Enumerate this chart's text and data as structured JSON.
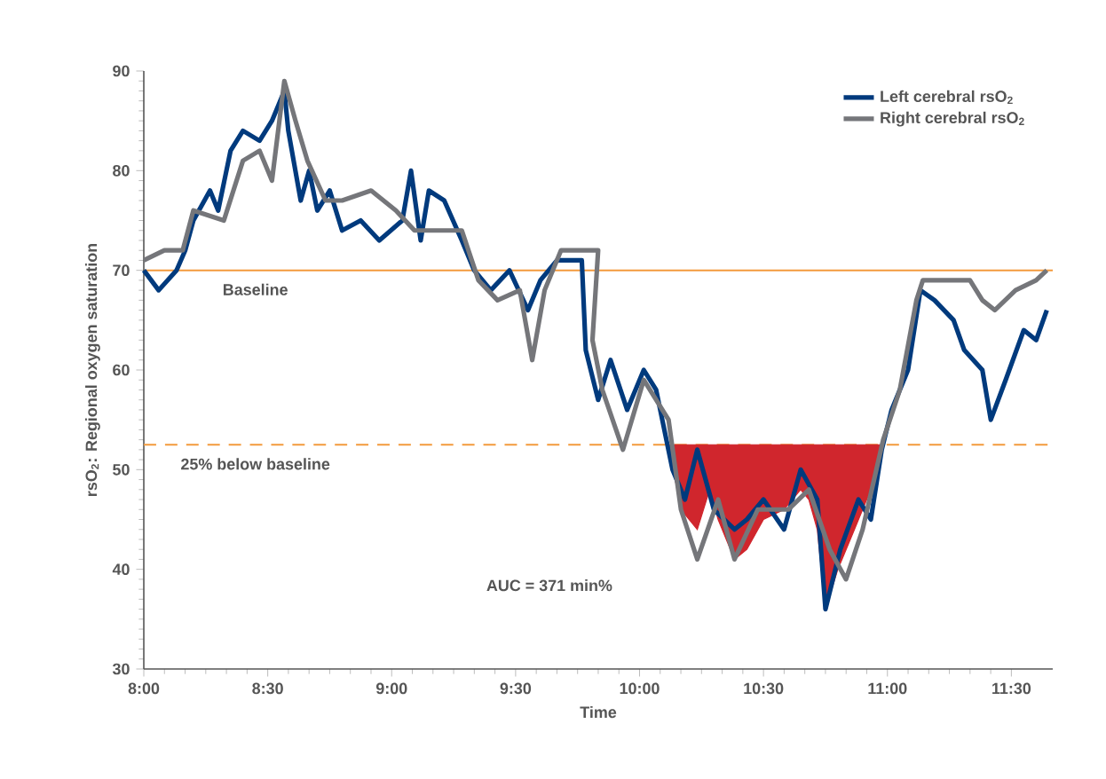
{
  "chart_data": {
    "type": "line",
    "xlabel": "Time",
    "ylabel": "rsO$_{2}$: Regional oxygen saturation",
    "xlim": [
      8,
      11.667
    ],
    "ylim": [
      30,
      90
    ],
    "xticks": [
      {
        "value": 8,
        "label": "8:00"
      },
      {
        "value": 8.5,
        "label": "8:30"
      },
      {
        "value": 9,
        "label": "9:00"
      },
      {
        "value": 9.5,
        "label": "9:30"
      },
      {
        "value": 10,
        "label": "10:00"
      },
      {
        "value": 10.5,
        "label": "10:30"
      },
      {
        "value": 11,
        "label": "11:00"
      },
      {
        "value": 11.5,
        "label": "11:30"
      }
    ],
    "yticks": [
      30,
      40,
      50,
      60,
      70,
      80,
      90
    ],
    "legend": "top right",
    "grid": false,
    "marker": "none",
    "line_style": "solid",
    "series": [
      {
        "name": "Left cerebral rsO$_{2}$",
        "color": "#003a7d",
        "x": [
          8.0,
          8.06,
          8.132,
          8.167,
          8.2,
          8.267,
          8.3,
          8.35,
          8.4,
          8.467,
          8.517,
          8.567,
          8.583,
          8.633,
          8.667,
          8.7,
          8.75,
          8.8,
          8.875,
          8.95,
          9.043,
          9.078,
          9.117,
          9.15,
          9.212,
          9.283,
          9.333,
          9.4,
          9.475,
          9.55,
          9.6,
          9.667,
          9.767,
          9.783,
          9.833,
          9.883,
          9.95,
          10.017,
          10.067,
          10.133,
          10.183,
          10.233,
          10.3,
          10.383,
          10.433,
          10.5,
          10.583,
          10.65,
          10.717,
          10.75,
          10.81,
          10.883,
          10.933,
          10.977,
          11.017,
          11.083,
          11.133,
          11.19,
          11.267,
          11.31,
          11.383,
          11.417,
          11.477,
          11.55,
          11.6,
          11.643
        ],
        "values": [
          70,
          68,
          70,
          72,
          75,
          78,
          76,
          82,
          84,
          83,
          85,
          88,
          84,
          77,
          80,
          76,
          78,
          74,
          75,
          73,
          75,
          80,
          73,
          78,
          77,
          73,
          70,
          68,
          70,
          66,
          69,
          71,
          71,
          62,
          57,
          61,
          56,
          60,
          58,
          50,
          47,
          52,
          46,
          44,
          45,
          47,
          44,
          50,
          47,
          36,
          42,
          47,
          45,
          52,
          56,
          60,
          68,
          67,
          65,
          62,
          60,
          55,
          59,
          64,
          63,
          66
        ]
      },
      {
        "name": "Right cerebral rsO$_{2}$",
        "color": "#75767a",
        "x": [
          8.0,
          8.083,
          8.157,
          8.2,
          8.323,
          8.4,
          8.467,
          8.517,
          8.567,
          8.612,
          8.66,
          8.733,
          8.8,
          8.917,
          9.017,
          9.092,
          9.183,
          9.283,
          9.35,
          9.427,
          9.517,
          9.567,
          9.617,
          9.683,
          9.767,
          9.833,
          9.81,
          9.85,
          9.933,
          10.017,
          10.117,
          10.167,
          10.233,
          10.317,
          10.383,
          10.477,
          10.6,
          10.683,
          10.767,
          10.833,
          10.9,
          10.983,
          11.05,
          11.117,
          11.143,
          11.233,
          11.333,
          11.383,
          11.433,
          11.517,
          11.6,
          11.643
        ],
        "values": [
          71,
          72,
          72,
          76,
          75,
          81,
          82,
          79,
          89,
          85,
          81,
          77,
          77,
          78,
          76,
          74,
          74,
          74,
          69,
          67,
          68,
          61,
          68,
          72,
          72,
          72,
          63,
          58,
          52,
          59,
          55,
          46,
          41,
          47,
          41,
          46,
          46,
          48,
          42,
          39,
          44,
          53,
          58,
          67,
          69,
          69,
          69,
          67,
          66,
          68,
          69,
          70
        ]
      },
      {
        "type": "area",
        "color": "#d0262d",
        "x": [
          10.117,
          10.167,
          10.233,
          10.283,
          10.317,
          10.383,
          10.433,
          10.5,
          10.583,
          10.65,
          10.683,
          10.717,
          10.75,
          10.8,
          10.867,
          10.933,
          10.977
        ],
        "values": [
          52.5,
          46,
          44,
          48,
          45,
          41,
          42,
          45,
          46,
          48,
          47,
          44,
          36,
          40,
          44,
          48,
          52.5
        ]
      }
    ],
    "ref_lines": [
      {
        "axis": "y",
        "value": 70,
        "label": "Baseline",
        "color": "#f39a3c",
        "line_style": "solid"
      },
      {
        "axis": "y",
        "value": 52.5,
        "label": "25% below baseline",
        "color": "#f39a3c",
        "line_style": "dashed"
      }
    ],
    "annotations": [
      "AUC = 371 min%"
    ]
  }
}
